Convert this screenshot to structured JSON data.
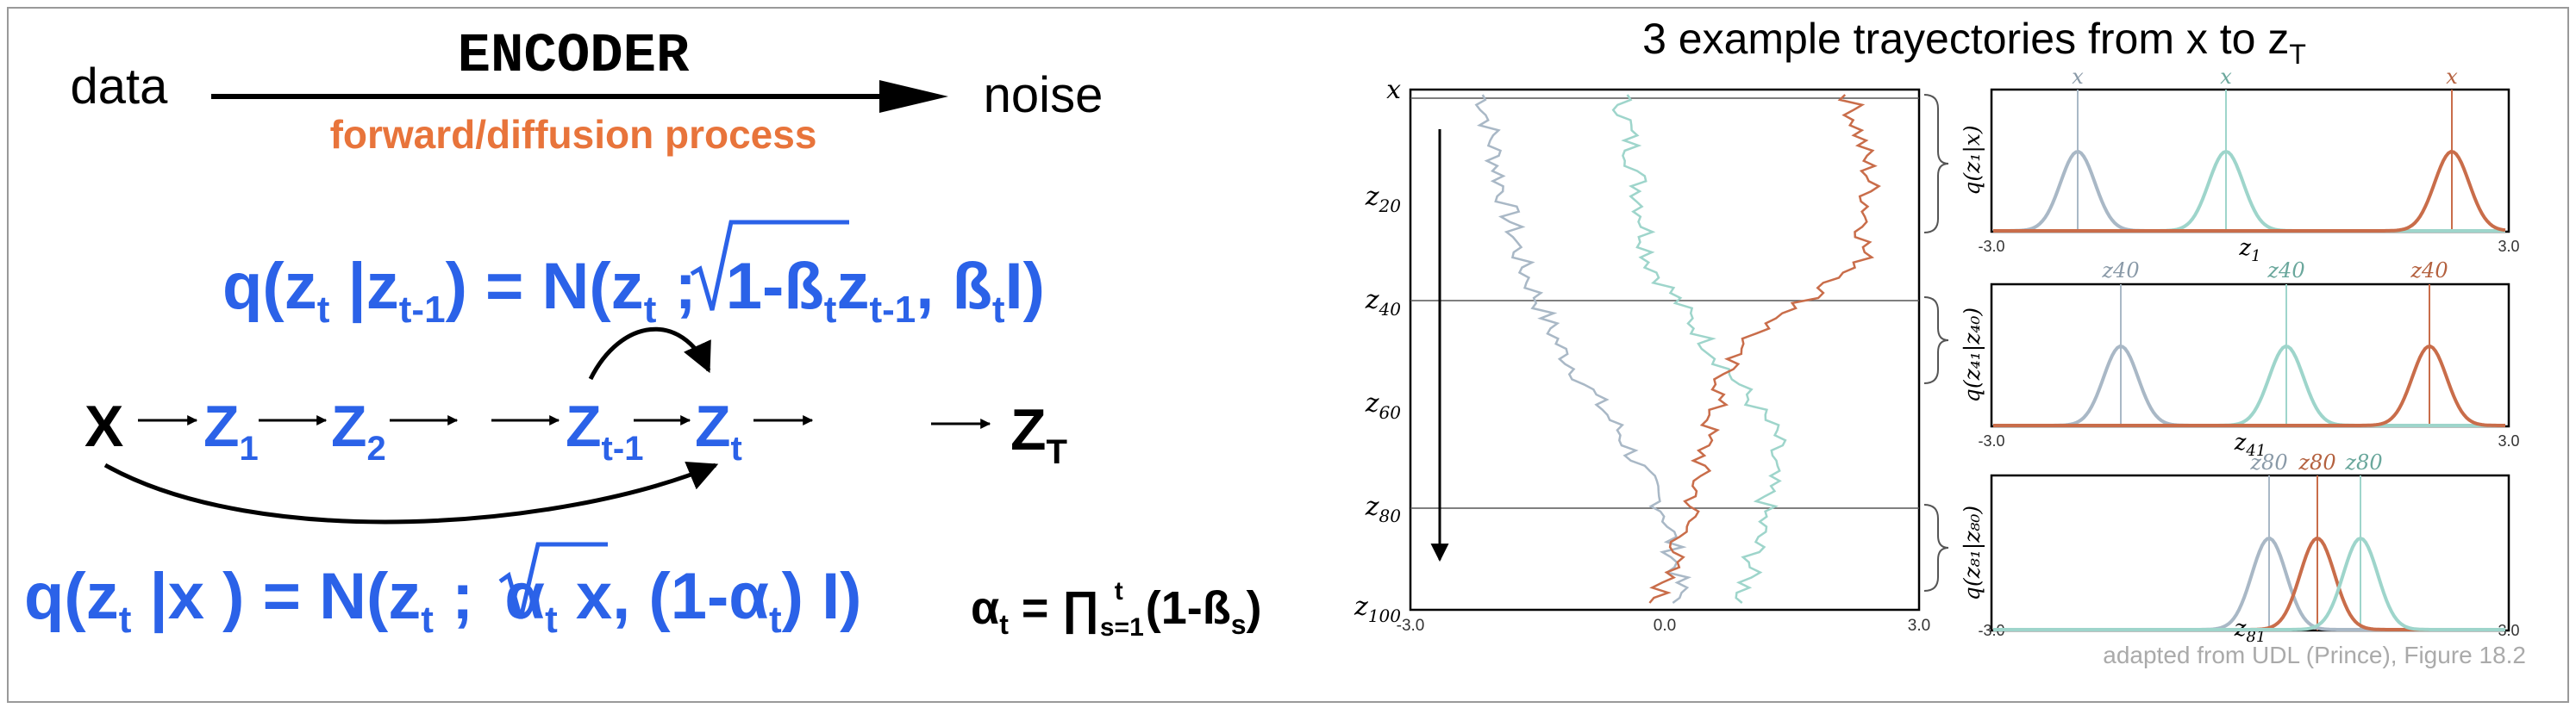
{
  "encoder": {
    "title": "ENCODER",
    "left_label": "data",
    "right_label": "noise",
    "subtitle": "forward/diffusion process"
  },
  "equations": {
    "eq1": {
      "q": "q(z",
      "sub_t": "t",
      "bar": " |z",
      "sub_tm1": "t-1",
      "mid": ") = N(z",
      "sub_t2": "t",
      "semi": " ;",
      "root": "1-ß",
      "sub_t3": "t",
      "z": "z",
      "sub_tm1b": "t-1",
      "tail": ", ß",
      "sub_t4": "t",
      "end": "I)"
    },
    "eq2": {
      "q": "q(z",
      "sub_t": "t",
      "mid": " |x )  = N(z",
      "sub_t2": "t",
      "semi": " ;",
      "root": "α",
      "sub_t3": "t",
      "x": " x, (1-α",
      "sub_t4": "t",
      "end": ") I)"
    },
    "alpha_def": {
      "lhs": "α",
      "lhs_sub": "t",
      "eq": " = ∏",
      "prod_sub": "s=1",
      "prod_sup": "t",
      "body": "(1-ß",
      "body_sub": "s",
      "end": ")"
    }
  },
  "chain": {
    "x": "X",
    "z1": "Z",
    "z1_sub": "1",
    "z2": "Z",
    "z2_sub": "2",
    "ztm1": "Z",
    "ztm1_sub": "t-1",
    "zt": "Z",
    "zt_sub": "t",
    "zT": "Z",
    "zT_sub": "T"
  },
  "right": {
    "title": "3 example trayectories from x to z",
    "title_sub": "T",
    "credit": "adapted from UDL (Prince), Figure 18.2",
    "traj_y_labels": [
      {
        "base": "x",
        "sub": ""
      },
      {
        "base": "z",
        "sub": "20"
      },
      {
        "base": "z",
        "sub": "40"
      },
      {
        "base": "z",
        "sub": "60"
      },
      {
        "base": "z",
        "sub": "80"
      },
      {
        "base": "z",
        "sub": "100"
      }
    ],
    "traj_x_ticks": [
      "-3.0",
      "0.0",
      "3.0"
    ],
    "panels": [
      {
        "ylabel": "q(z₁|x)",
        "peak_labels": [
          "x",
          "x",
          "x"
        ],
        "xlabel_base": "z",
        "xlabel_sub": "1",
        "ticks": [
          "-3.0",
          "3.0"
        ]
      },
      {
        "ylabel": "q(z₄₁|z₄₀)",
        "peak_labels": [
          "z40",
          "z40",
          "z40"
        ],
        "xlabel_base": "z",
        "xlabel_sub": "41",
        "ticks": [
          "-3.0",
          "3.0"
        ]
      },
      {
        "ylabel": "q(z₈₁|z₈₀)",
        "peak_labels": [
          "z80",
          "z80",
          "z80"
        ],
        "xlabel_base": "z",
        "xlabel_sub": "81",
        "ticks": [
          "-3.0",
          "3.0"
        ]
      }
    ],
    "colors": {
      "gray": "#a9b8c6",
      "teal": "#9ed5cb",
      "orange": "#c96d4a",
      "axis": "#000000"
    }
  },
  "colors": {
    "blue": "#2b62e8",
    "orange": "#e8743b",
    "black": "#000000",
    "credit": "#aaaaaa"
  }
}
